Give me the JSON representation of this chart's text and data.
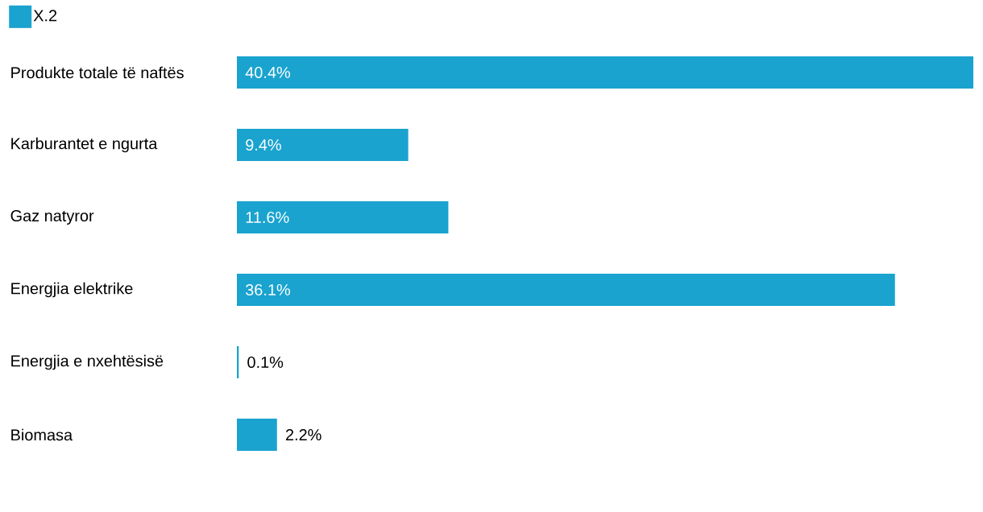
{
  "chart_data": {
    "type": "bar",
    "orientation": "horizontal",
    "categories": [
      "Produkte totale të naftës",
      "Karburantet e ngurta",
      "Gaz natyror",
      "Energjia elektrike",
      "Energjia e nxehtësisë",
      "Biomasa"
    ],
    "series": [
      {
        "name": "X.2",
        "color": "#1aa3cf",
        "values": [
          40.4,
          9.4,
          11.6,
          36.1,
          0.1,
          2.2
        ],
        "value_labels": [
          "40.4%",
          "9.4%",
          "11.6%",
          "36.1%",
          "0.1%",
          "2.2%"
        ]
      }
    ],
    "xlim": [
      0,
      40.4
    ],
    "tick_labels": "y",
    "legend": "top left"
  }
}
